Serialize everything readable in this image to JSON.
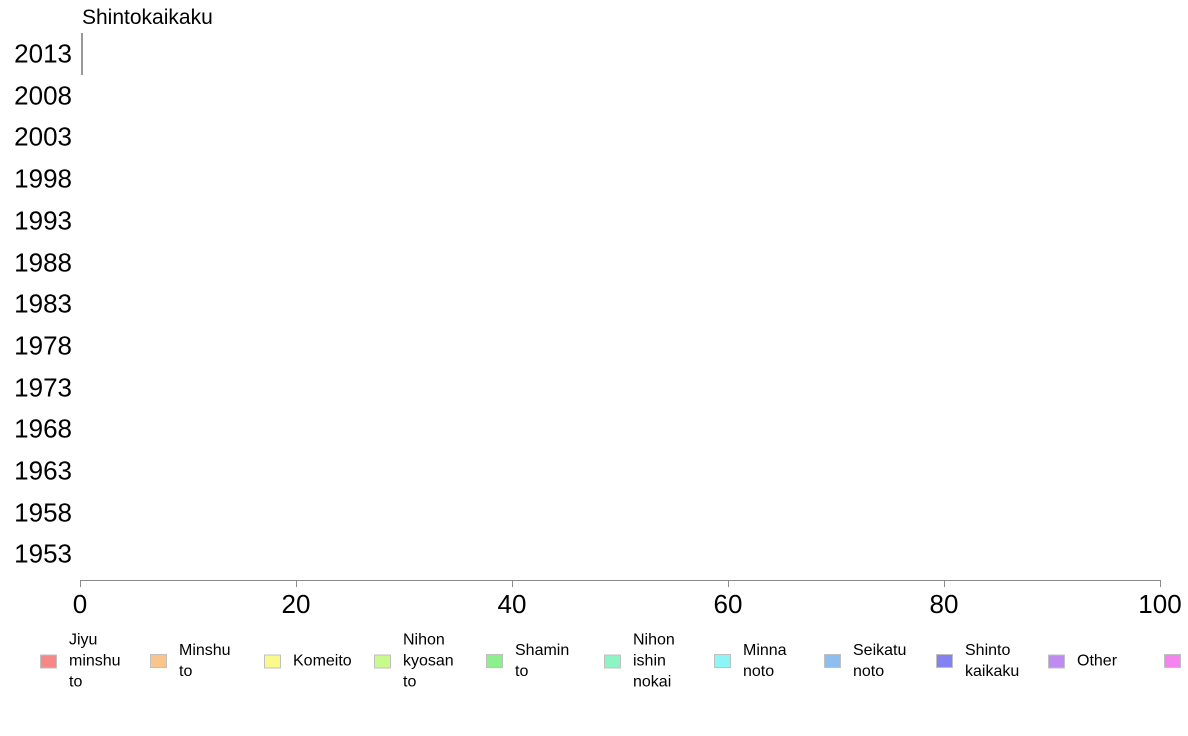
{
  "page": {
    "background_color": "#ffffff"
  },
  "chart_data": {
    "type": "bar",
    "orientation": "horizontal",
    "title": "Shintokaikaku",
    "categories": [
      "2013",
      "2008",
      "2003",
      "1998",
      "1993",
      "1988",
      "1983",
      "1978",
      "1973",
      "1968",
      "1963",
      "1958",
      "1953"
    ],
    "xlabel": "",
    "ylabel": "",
    "xlim": [
      0,
      100
    ],
    "x_ticks": [
      "0",
      "20",
      "40",
      "60",
      "80",
      "100"
    ],
    "grid": false,
    "legend_position": "bottom",
    "axis_color": "#8a8a8a",
    "markers": [
      {
        "row": "2013",
        "value": 0,
        "style": "vertical-gray-tick",
        "color": "#999999"
      }
    ],
    "series": [
      {
        "name": "Jiyu minshu to",
        "color": "#f68888",
        "values": []
      },
      {
        "name": "Minshu to",
        "color": "#fac58a",
        "values": []
      },
      {
        "name": "Komeito",
        "color": "#fafa8c",
        "values": []
      },
      {
        "name": "Nihon kyosan to",
        "color": "#c8fa8c",
        "values": []
      },
      {
        "name": "Shamin to",
        "color": "#8cf08c",
        "values": []
      },
      {
        "name": "Nihon ishin nokai",
        "color": "#8cf5c3",
        "values": []
      },
      {
        "name": "Minna noto",
        "color": "#8cf5f5",
        "values": []
      },
      {
        "name": "Seikatu noto",
        "color": "#8cbef0",
        "values": []
      },
      {
        "name": "Shinto kaikaku",
        "color": "#8282f0",
        "values": []
      },
      {
        "name": "Other",
        "color": "#be8cf0",
        "values": []
      }
    ],
    "legend": [
      {
        "label": "Jiyu minshu to",
        "label_lines": "Jiyu\nminshu\nto",
        "color": "#f68888"
      },
      {
        "label": "Minshu to",
        "label_lines": "Minshu\nto",
        "color": "#fac58a"
      },
      {
        "label": "Komeito",
        "label_lines": "Komeito",
        "color": "#fafa8c"
      },
      {
        "label": "Nihon kyosan to",
        "label_lines": "Nihon\nkyosan\nto",
        "color": "#c8fa8c"
      },
      {
        "label": "Shamin to",
        "label_lines": "Shamin\nto",
        "color": "#8cf08c"
      },
      {
        "label": "Nihon ishin nokai",
        "label_lines": "Nihon\nishin\nnokai",
        "color": "#8cf5c3"
      },
      {
        "label": "Minna noto",
        "label_lines": "Minna\nnoto",
        "color": "#8cf5f5"
      },
      {
        "label": "Seikatu noto",
        "label_lines": "Seikatu\nnoto",
        "color": "#8cbef0"
      },
      {
        "label": "Shinto kaikaku",
        "label_lines": "Shinto\nkaikaku",
        "color": "#8282f0"
      },
      {
        "label": "Other",
        "label_lines": "Other",
        "color": "#be8cf0"
      },
      {
        "label": "",
        "label_lines": "",
        "color": "#f584ee"
      }
    ]
  }
}
